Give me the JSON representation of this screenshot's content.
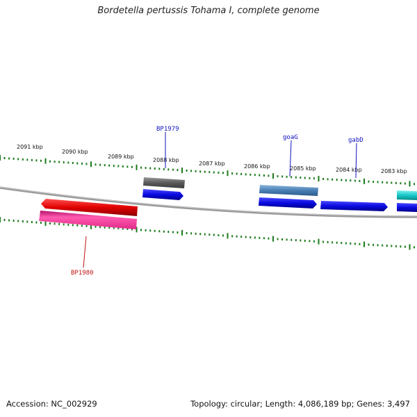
{
  "title": "Bordetella pertussis Tohama I, complete genome",
  "footer": {
    "accession": "Accession: NC_002929",
    "summary": "Topology: circular; Length: 4,086,189 bp; Genes: 3,497"
  },
  "scale_labels": [
    "2091 kbp",
    "2090 kbp",
    "2089 kbp",
    "2088 kbp",
    "2087 kbp",
    "2086 kbp",
    "2085 kbp",
    "2084 kbp",
    "2083 kbp"
  ],
  "gene_labels": [
    {
      "name": "BP1979",
      "color": "#1010c0"
    },
    {
      "name": "goaG",
      "color": "#1010c0"
    },
    {
      "name": "gabD",
      "color": "#1010c0"
    },
    {
      "name": "BP1980",
      "color": "#c01010"
    }
  ],
  "colors": {
    "backbone": "#808080",
    "tick": "#1a7a1a",
    "forward_cds": "#0a0ae0",
    "reverse_cds": "#e00000",
    "pseudo": "#606060",
    "steel": "#4a7fb5",
    "cyan": "#16c8c8",
    "magenta": "#ee3a98"
  }
}
